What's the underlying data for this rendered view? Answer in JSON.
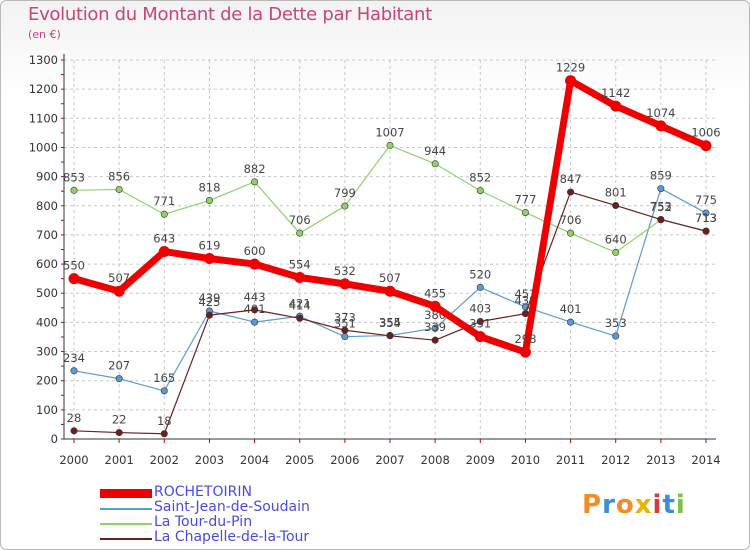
{
  "header": {
    "title": "Evolution du Montant de la Dette par Habitant",
    "unit": "(en €)"
  },
  "chart_data": {
    "type": "line",
    "title": "Evolution du Montant de la Dette par Habitant",
    "ylabel": "(en €)",
    "ylim": [
      0,
      1300
    ],
    "yticks": [
      0,
      100,
      200,
      300,
      400,
      500,
      600,
      700,
      800,
      900,
      1000,
      1100,
      1200,
      1300
    ],
    "x": [
      "2000",
      "2001",
      "2002",
      "2003",
      "2004",
      "2005",
      "2006",
      "2007",
      "2008",
      "2009",
      "2010",
      "2011",
      "2012",
      "2013",
      "2014"
    ],
    "grid": true,
    "legend": "bottom-left",
    "series": [
      {
        "name": "ROCHETOIRIN",
        "color": "#ee0000",
        "width": 7,
        "emphasis": true,
        "values": [
          550,
          507,
          643,
          619,
          600,
          554,
          532,
          507,
          455,
          351,
          298,
          1229,
          1142,
          1074,
          1006
        ]
      },
      {
        "name": "Saint-Jean-de-Soudain",
        "color": "#5b9bd5",
        "width": 1.2,
        "emphasis": false,
        "values": [
          234,
          207,
          165,
          439,
          401,
          421,
          351,
          355,
          380,
          520,
          453,
          401,
          353,
          859,
          775
        ]
      },
      {
        "name": "La Tour-du-Pin",
        "color": "#8ed36a",
        "width": 1.2,
        "emphasis": false,
        "values": [
          853,
          856,
          771,
          818,
          882,
          706,
          799,
          1007,
          944,
          852,
          777,
          706,
          640,
          752,
          713
        ]
      },
      {
        "name": "La Chapelle-de-la-Tour",
        "color": "#6b1f1f",
        "width": 1.2,
        "emphasis": false,
        "values": [
          28,
          22,
          18,
          425,
          443,
          414,
          373,
          354,
          339,
          403,
          430,
          847,
          801,
          753,
          713
        ]
      }
    ]
  },
  "branding": {
    "logo_text": "Proxiti",
    "logo_colors": [
      "#f28c28",
      "#3a8fd8",
      "#f28c28",
      "#e8b400",
      "#d93a3a",
      "#3a8fd8",
      "#7cc242"
    ]
  }
}
